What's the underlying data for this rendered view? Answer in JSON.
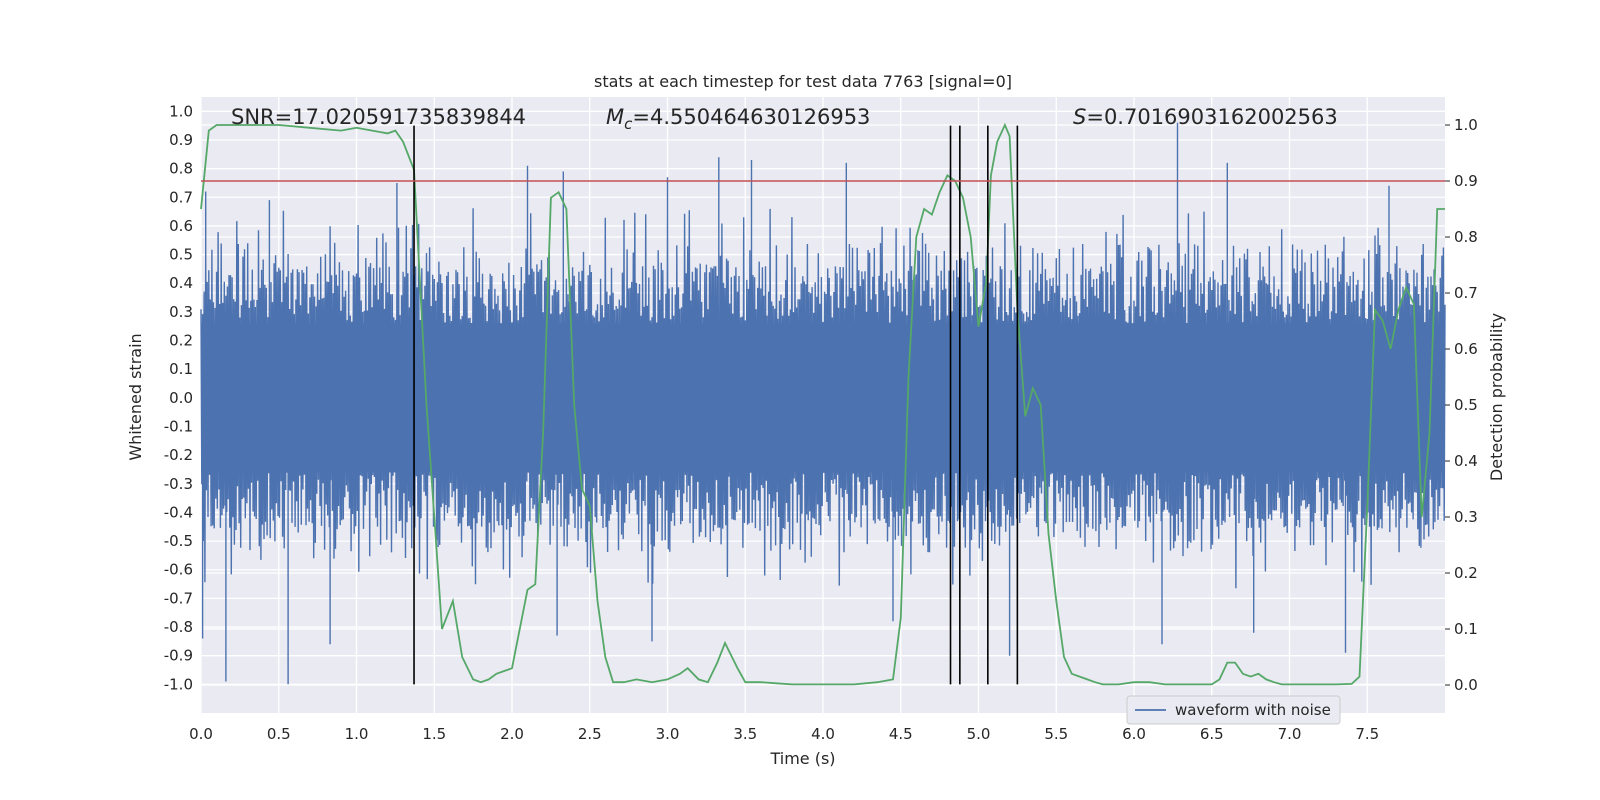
{
  "chart_data": {
    "type": "line",
    "title": "stats at each timestep for test data 7763 [signal=0]",
    "xlabel": "Time (s)",
    "ylabel": "Whitened strain",
    "y2label": "Detection probability",
    "xlim": [
      0.0,
      8.0
    ],
    "ylim": [
      -1.1,
      1.05
    ],
    "y2lim": [
      -0.05,
      1.05
    ],
    "x_ticks": [
      "0.0",
      "0.5",
      "1.0",
      "1.5",
      "2.0",
      "2.5",
      "3.0",
      "3.5",
      "4.0",
      "4.5",
      "5.0",
      "5.5",
      "6.0",
      "6.5",
      "7.0",
      "7.5"
    ],
    "y_ticks": [
      "1.0",
      "0.9",
      "0.8",
      "0.7",
      "0.6",
      "0.5",
      "0.4",
      "0.3",
      "0.2",
      "0.1",
      "0.0",
      "-0.1",
      "-0.2",
      "-0.3",
      "-0.4",
      "-0.5",
      "-0.6",
      "-0.7",
      "-0.8",
      "-0.9",
      "-1.0"
    ],
    "y2_ticks": [
      "1.0",
      "0.9",
      "0.8",
      "0.7",
      "0.6",
      "0.5",
      "0.4",
      "0.3",
      "0.2",
      "0.1",
      "0.0"
    ],
    "grid": true,
    "legend_position": "lower-right",
    "annotations": {
      "snr": "SNR=17.020591735839844",
      "mc_symbol": "M",
      "mc_sub": "c",
      "mc_value": "=4.550464630126953",
      "s_symbol": "S",
      "s_value": "=0.7016903162002563"
    },
    "series": [
      {
        "name": "waveform with noise",
        "axis": "left",
        "color": "#4c72b0",
        "note": "dense noise series spanning 0 to 8 s",
        "peak_up": [
          [
            0.03,
            0.72
          ],
          [
            0.44,
            0.69
          ],
          [
            1.26,
            0.75
          ],
          [
            2.1,
            0.81
          ],
          [
            2.33,
            0.79
          ],
          [
            3.0,
            0.77
          ],
          [
            3.33,
            0.84
          ],
          [
            3.54,
            0.82
          ],
          [
            3.54,
            0.83
          ],
          [
            4.15,
            0.82
          ],
          [
            4.82,
            0.8
          ],
          [
            6.28,
            0.96
          ],
          [
            6.6,
            0.82
          ],
          [
            7.64,
            0.74
          ]
        ],
        "peak_down": [
          [
            0.01,
            -0.84
          ],
          [
            0.16,
            -0.99
          ],
          [
            0.56,
            -1.0
          ],
          [
            0.83,
            -0.86
          ],
          [
            2.29,
            -0.83
          ],
          [
            2.9,
            -0.85
          ],
          [
            4.45,
            -0.78
          ],
          [
            5.2,
            -0.9
          ],
          [
            6.18,
            -0.86
          ],
          [
            6.77,
            -0.82
          ],
          [
            7.36,
            -0.89
          ]
        ]
      },
      {
        "name": "",
        "axis": "right",
        "color": "#55a868",
        "x": [
          0.0,
          0.05,
          0.1,
          0.2,
          0.3,
          0.5,
          0.7,
          0.9,
          1.0,
          1.1,
          1.2,
          1.25,
          1.3,
          1.37,
          1.45,
          1.5,
          1.55,
          1.62,
          1.68,
          1.75,
          1.8,
          1.85,
          1.9,
          1.95,
          2.0,
          2.1,
          2.15,
          2.2,
          2.25,
          2.3,
          2.35,
          2.4,
          2.45,
          2.5,
          2.55,
          2.6,
          2.65,
          2.72,
          2.8,
          2.9,
          3.0,
          3.08,
          3.13,
          3.2,
          3.26,
          3.32,
          3.37,
          3.45,
          3.5,
          3.6,
          3.7,
          3.8,
          4.0,
          4.2,
          4.35,
          4.45,
          4.5,
          4.55,
          4.6,
          4.65,
          4.7,
          4.75,
          4.8,
          4.85,
          4.9,
          4.95,
          5.0,
          5.05,
          5.08,
          5.12,
          5.17,
          5.2,
          5.25,
          5.3,
          5.35,
          5.4,
          5.45,
          5.5,
          5.55,
          5.6,
          5.65,
          5.7,
          5.75,
          5.8,
          5.9,
          6.0,
          6.1,
          6.2,
          6.3,
          6.4,
          6.5,
          6.55,
          6.6,
          6.65,
          6.7,
          6.75,
          6.8,
          6.85,
          6.9,
          6.95,
          7.0,
          7.1,
          7.2,
          7.3,
          7.4,
          7.45,
          7.5,
          7.55,
          7.6,
          7.65,
          7.7,
          7.75,
          7.8,
          7.85,
          7.9,
          7.95,
          8.0
        ],
        "values": [
          0.85,
          0.99,
          1.0,
          1.0,
          1.0,
          1.0,
          0.995,
          0.99,
          0.995,
          0.99,
          0.985,
          0.99,
          0.97,
          0.92,
          0.5,
          0.3,
          0.1,
          0.15,
          0.05,
          0.01,
          0.005,
          0.01,
          0.02,
          0.025,
          0.03,
          0.17,
          0.18,
          0.45,
          0.87,
          0.88,
          0.85,
          0.5,
          0.35,
          0.32,
          0.15,
          0.05,
          0.005,
          0.005,
          0.01,
          0.005,
          0.01,
          0.02,
          0.03,
          0.01,
          0.005,
          0.04,
          0.075,
          0.03,
          0.005,
          0.005,
          0.003,
          0.001,
          0.001,
          0.001,
          0.005,
          0.01,
          0.12,
          0.55,
          0.8,
          0.85,
          0.84,
          0.88,
          0.91,
          0.9,
          0.87,
          0.8,
          0.64,
          0.72,
          0.91,
          0.97,
          1.0,
          0.98,
          0.67,
          0.48,
          0.53,
          0.5,
          0.27,
          0.15,
          0.05,
          0.02,
          0.015,
          0.01,
          0.005,
          0.001,
          0.001,
          0.005,
          0.005,
          0.001,
          0.001,
          0.001,
          0.001,
          0.01,
          0.04,
          0.04,
          0.02,
          0.015,
          0.02,
          0.01,
          0.005,
          0.001,
          0.001,
          0.001,
          0.001,
          0.001,
          0.002,
          0.015,
          0.32,
          0.67,
          0.65,
          0.6,
          0.67,
          0.71,
          0.68,
          0.3,
          0.45,
          0.85,
          0.85
        ]
      }
    ],
    "threshold": {
      "value": 0.9,
      "axis": "right",
      "color": "#c44e52"
    },
    "vlines": [
      1.37,
      4.82,
      4.88,
      5.06,
      5.25
    ],
    "vline_ymin": -1.0,
    "vline_ymax": 0.95
  }
}
